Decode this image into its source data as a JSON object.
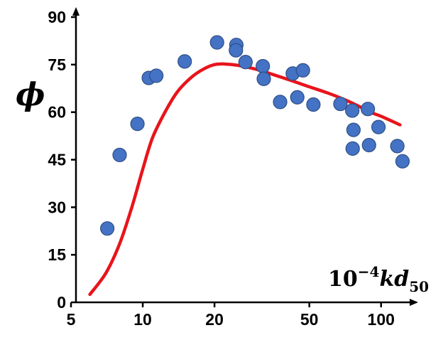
{
  "chart_data": {
    "type": "scatter",
    "title": "",
    "ylabel": "ϕ",
    "xlabel": {
      "base": "10",
      "exp": "−4",
      "var": "kd",
      "sub": "50"
    },
    "x_scale": "log",
    "xlim": [
      5,
      130
    ],
    "ylim": [
      0,
      90
    ],
    "x_ticks": [
      5,
      10,
      20,
      50,
      100
    ],
    "y_ticks": [
      0,
      15,
      30,
      45,
      60,
      75,
      90
    ],
    "grid": false,
    "legend": "none",
    "colors": {
      "points": "#4472c4",
      "curve": "#e8141b"
    },
    "series": [
      {
        "kind": "points",
        "points": [
          {
            "x": 7.1,
            "y": 23.3
          },
          {
            "x": 8.0,
            "y": 46.5
          },
          {
            "x": 9.5,
            "y": 56.3
          },
          {
            "x": 10.6,
            "y": 70.8
          },
          {
            "x": 11.4,
            "y": 71.5
          },
          {
            "x": 15.0,
            "y": 76.0
          },
          {
            "x": 20.5,
            "y": 82.0
          },
          {
            "x": 24.7,
            "y": 81.2
          },
          {
            "x": 24.6,
            "y": 79.5
          },
          {
            "x": 27.0,
            "y": 75.8
          },
          {
            "x": 31.9,
            "y": 74.5
          },
          {
            "x": 32.2,
            "y": 70.5
          },
          {
            "x": 37.7,
            "y": 63.2
          },
          {
            "x": 42.6,
            "y": 72.2
          },
          {
            "x": 47.0,
            "y": 73.2
          },
          {
            "x": 44.5,
            "y": 64.7
          },
          {
            "x": 52.0,
            "y": 62.4
          },
          {
            "x": 67.5,
            "y": 62.6
          },
          {
            "x": 75.7,
            "y": 60.5
          },
          {
            "x": 76.6,
            "y": 54.4
          },
          {
            "x": 76.0,
            "y": 48.5
          },
          {
            "x": 88.0,
            "y": 61.0
          },
          {
            "x": 89.0,
            "y": 49.6
          },
          {
            "x": 97.5,
            "y": 55.3
          },
          {
            "x": 117.0,
            "y": 49.3
          },
          {
            "x": 123.0,
            "y": 44.5
          }
        ]
      },
      {
        "kind": "curve",
        "points": [
          {
            "x": 6.0,
            "y": 2.5
          },
          {
            "x": 7.0,
            "y": 9.2
          },
          {
            "x": 8.0,
            "y": 18.5
          },
          {
            "x": 9.0,
            "y": 30.0
          },
          {
            "x": 10.0,
            "y": 42.0
          },
          {
            "x": 11.0,
            "y": 52.0
          },
          {
            "x": 12.5,
            "y": 60.5
          },
          {
            "x": 14.0,
            "y": 66.5
          },
          {
            "x": 16.0,
            "y": 71.0
          },
          {
            "x": 18.0,
            "y": 73.6
          },
          {
            "x": 20.0,
            "y": 75.0
          },
          {
            "x": 22.0,
            "y": 75.2
          },
          {
            "x": 25.0,
            "y": 74.8
          },
          {
            "x": 30.0,
            "y": 73.5
          },
          {
            "x": 40.0,
            "y": 70.5
          },
          {
            "x": 50.0,
            "y": 68.0
          },
          {
            "x": 60.0,
            "y": 66.0
          },
          {
            "x": 70.0,
            "y": 64.0
          },
          {
            "x": 80.0,
            "y": 62.0
          },
          {
            "x": 90.0,
            "y": 60.0
          },
          {
            "x": 100.0,
            "y": 58.7
          },
          {
            "x": 120.0,
            "y": 56.0
          }
        ]
      }
    ]
  }
}
